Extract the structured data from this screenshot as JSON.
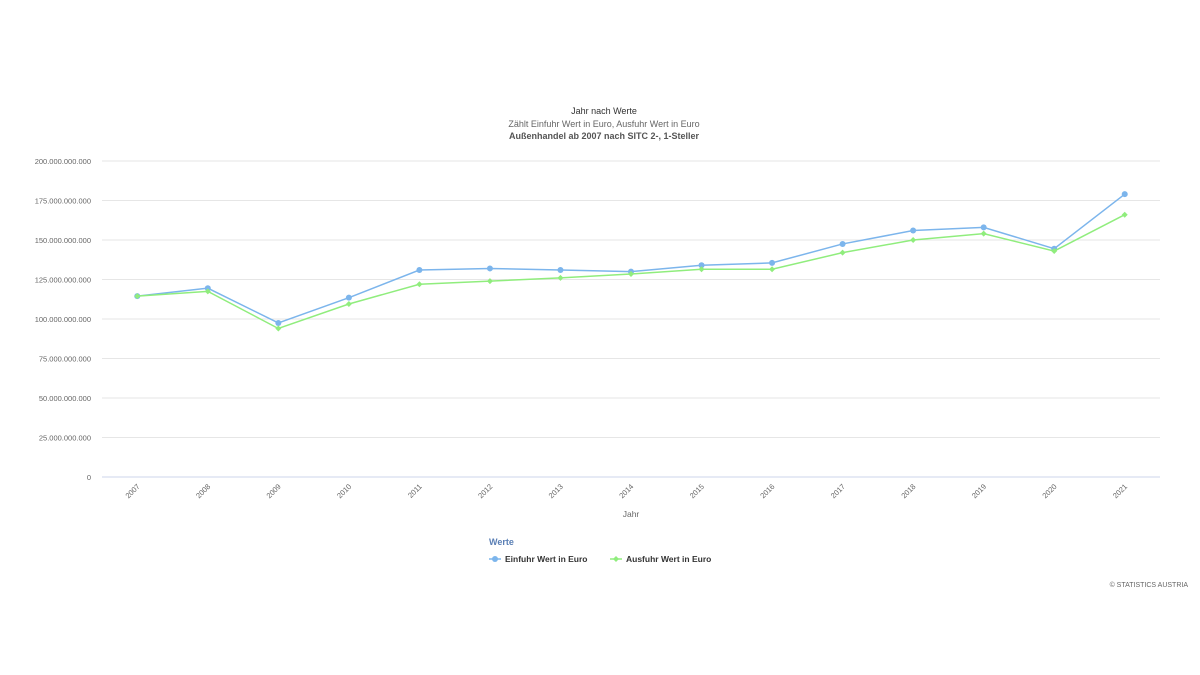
{
  "chart_data": {
    "type": "line",
    "title": "Jahr nach Werte",
    "subtitle": "Zählt Einfuhr Wert in Euro, Ausfuhr Wert in Euro",
    "subtitle2": "Außenhandel ab 2007 nach SITC 2-, 1-Steller",
    "xlabel": "Jahr",
    "ylabel": "",
    "categories": [
      "2007",
      "2008",
      "2009",
      "2010",
      "2011",
      "2012",
      "2013",
      "2014",
      "2015",
      "2016",
      "2017",
      "2018",
      "2019",
      "2020",
      "2021"
    ],
    "ylim": [
      0,
      200000000000
    ],
    "yticks": [
      "0",
      "25.000.000.000",
      "50.000.000.000",
      "75.000.000.000",
      "100.000.000.000",
      "125.000.000.000",
      "150.000.000.000",
      "175.000.000.000",
      "200.000.000.000"
    ],
    "grid": true,
    "legend_title": "Werte",
    "legend_position": "bottom-center",
    "series": [
      {
        "name": "Einfuhr Wert in Euro",
        "color": "#7cb5ec",
        "marker": "circle",
        "values": [
          114500000000,
          119500000000,
          97500000000,
          113500000000,
          131000000000,
          132000000000,
          131000000000,
          130000000000,
          134000000000,
          135500000000,
          147500000000,
          156000000000,
          158000000000,
          144500000000,
          179000000000
        ]
      },
      {
        "name": "Ausfuhr Wert in Euro",
        "color": "#90ed7d",
        "marker": "diamond",
        "values": [
          114500000000,
          117500000000,
          94000000000,
          109500000000,
          122000000000,
          124000000000,
          126000000000,
          128500000000,
          131500000000,
          131500000000,
          142000000000,
          150000000000,
          154000000000,
          143000000000,
          166000000000
        ]
      }
    ]
  },
  "credit": "© STATISTICS AUSTRIA"
}
